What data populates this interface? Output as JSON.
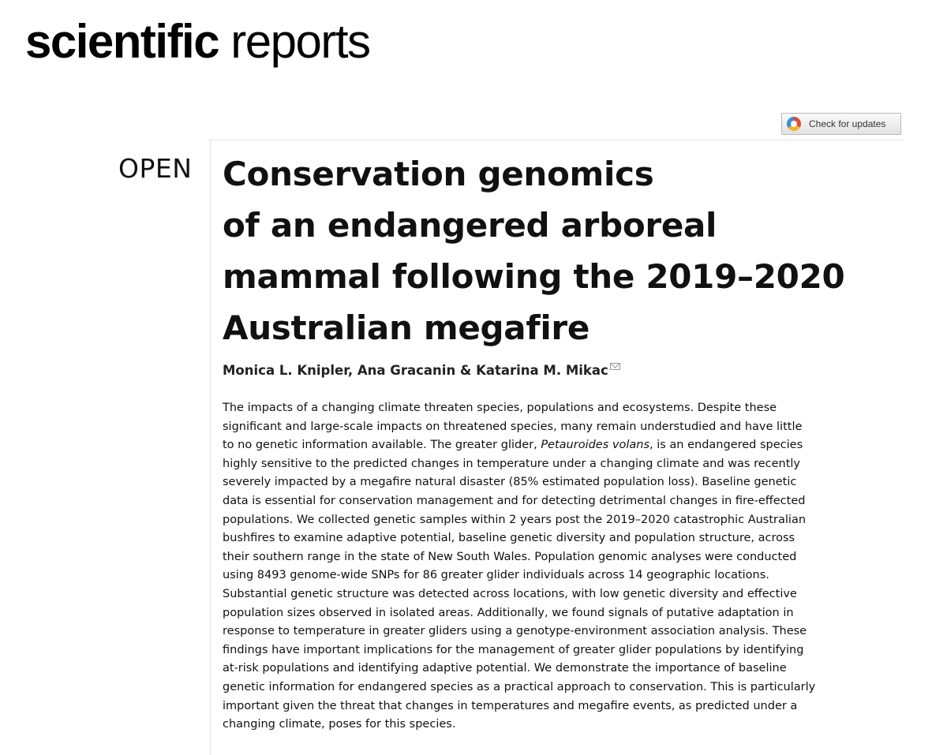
{
  "journal": {
    "name_bold": "scientific",
    "name_light": "reports"
  },
  "check_updates": {
    "label": "Check for updates"
  },
  "article": {
    "access_label": "OPEN",
    "title_lines": [
      "Conservation genomics",
      "of an endangered arboreal",
      "mammal following the 2019–2020",
      "Australian megafire"
    ],
    "authors": "Monica L. Knipler, Ana Gracanin & Katarina M. Mikac",
    "abstract": {
      "line_1": "The impacts of a changing climate threaten species, populations and ecosystems. Despite these",
      "line_2": "significant and large-scale impacts on threatened species, many remain understudied and have little",
      "line_3_before": "to no genetic information available. The greater glider, ",
      "line_3_italic": "Petauroides volans",
      "line_3_after": ", is an endangered species",
      "line_4": "highly sensitive to the predicted changes in temperature under a changing climate and was recently",
      "line_5": "severely impacted by a megafire natural disaster (85% estimated population loss). Baseline genetic",
      "line_6": "data is essential for conservation management and for detecting detrimental changes in fire-effected",
      "line_7": "populations. We collected genetic samples within 2 years post the 2019–2020 catastrophic Australian",
      "line_8": "bushfires to examine adaptive potential, baseline genetic diversity and population structure, across",
      "line_9": "their southern range in the state of New South Wales. Population genomic analyses were conducted",
      "line_10": "using 8493 genome-wide SNPs for 86 greater glider individuals across 14 geographic locations.",
      "line_11": "Substantial genetic structure was detected across locations, with low genetic diversity and effective",
      "line_12": "population sizes observed in isolated areas. Additionally, we found signals of putative adaptation in",
      "line_13": "response to temperature in greater gliders using a genotype-environment association analysis. These",
      "line_14": "findings have important implications for the management of greater glider populations by identifying",
      "line_15": "at-risk populations and identifying adaptive potential. We demonstrate the importance of baseline",
      "line_16": "genetic information for endangered species as a practical approach to conservation. This is particularly",
      "line_17": "important given the threat that changes in temperatures and megafire events, as predicted under a",
      "line_18": "changing climate, poses for this species."
    }
  },
  "icons": {
    "check_updates": "crossmark-icon",
    "author_contact": "mail-icon"
  },
  "colors": {
    "text": "#111111",
    "rule": "#cfcfcf",
    "button_border": "#b8b8b8"
  }
}
